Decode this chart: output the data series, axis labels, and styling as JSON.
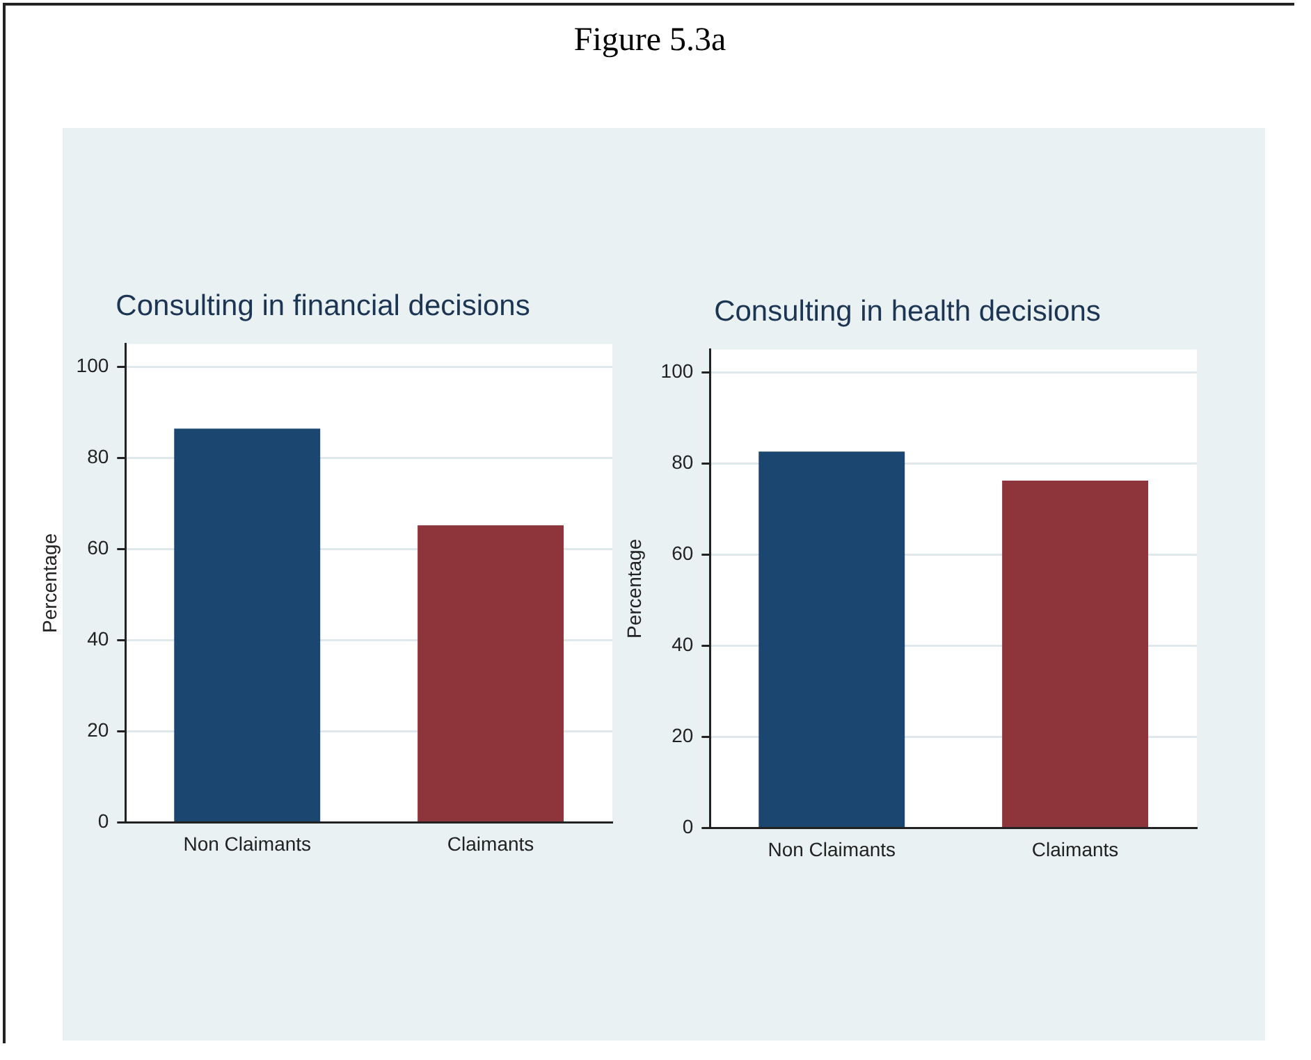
{
  "chart_data": [
    {
      "type": "bar",
      "title": "Consulting in financial decisions",
      "ylabel": "Percentage",
      "categories": [
        "Non Claimants",
        "Claimants"
      ],
      "values": [
        86.4,
        65.2
      ],
      "colors": [
        "#1b4670",
        "#8e353c"
      ],
      "ylim": [
        0,
        105
      ],
      "yticks": [
        0,
        20,
        40,
        60,
        80,
        100
      ],
      "grid": "y",
      "legend": false,
      "annotations": [
        "Figure 5.3a"
      ]
    },
    {
      "type": "bar",
      "title": "Consulting in health decisions",
      "ylabel": "Percentage",
      "categories": [
        "Non Claimants",
        "Claimants"
      ],
      "values": [
        82.6,
        76.2
      ],
      "colors": [
        "#1b4670",
        "#8e353c"
      ],
      "ylim": [
        0,
        105
      ],
      "yticks": [
        0,
        20,
        40,
        60,
        80,
        100
      ],
      "grid": "y",
      "legend": false
    }
  ]
}
